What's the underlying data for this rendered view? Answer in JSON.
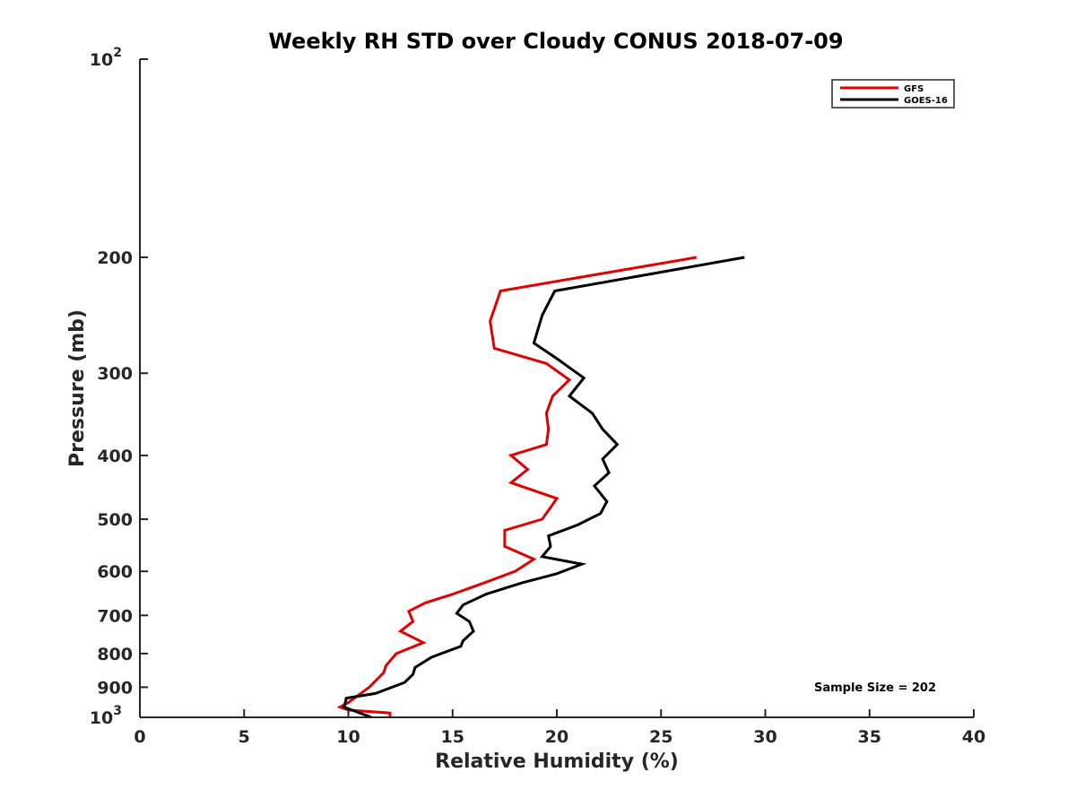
{
  "chart_data": {
    "type": "line",
    "title": "Weekly RH STD over Cloudy CONUS 2018-07-09",
    "xlabel": "Relative Humidity (%)",
    "ylabel": "Pressure (mb)",
    "xlim": [
      0,
      40
    ],
    "ylim": [
      100,
      1000
    ],
    "yscale": "log",
    "y_reversed": true,
    "xticks": [
      0,
      5,
      10,
      15,
      20,
      25,
      30,
      35,
      40
    ],
    "yticks": [
      {
        "value": 100,
        "base": "10",
        "exp": "2"
      },
      {
        "value": 200,
        "label": "200"
      },
      {
        "value": 300,
        "label": "300"
      },
      {
        "value": 400,
        "label": "400"
      },
      {
        "value": 500,
        "label": "500"
      },
      {
        "value": 600,
        "label": "600"
      },
      {
        "value": 700,
        "label": "700"
      },
      {
        "value": 800,
        "label": "800"
      },
      {
        "value": 900,
        "label": "900"
      },
      {
        "value": 1000,
        "base": "10",
        "exp": "3"
      }
    ],
    "legend_position": "top-right",
    "grid": false,
    "annotation": "Sample Size = 202",
    "series": [
      {
        "name": "GFS",
        "color": "#e00000",
        "points": [
          [
            26.7,
            200
          ],
          [
            17.3,
            225
          ],
          [
            16.8,
            250
          ],
          [
            17.0,
            275
          ],
          [
            19.5,
            290
          ],
          [
            20.6,
            307
          ],
          [
            19.8,
            325
          ],
          [
            19.5,
            345
          ],
          [
            19.6,
            365
          ],
          [
            19.5,
            385
          ],
          [
            17.8,
            400
          ],
          [
            18.6,
            420
          ],
          [
            17.8,
            440
          ],
          [
            20.0,
            465
          ],
          [
            19.7,
            480
          ],
          [
            19.3,
            500
          ],
          [
            17.5,
            520
          ],
          [
            17.5,
            550
          ],
          [
            18.9,
            575
          ],
          [
            18.0,
            600
          ],
          [
            16.5,
            625
          ],
          [
            15.0,
            650
          ],
          [
            13.7,
            670
          ],
          [
            12.9,
            690
          ],
          [
            13.1,
            715
          ],
          [
            12.5,
            740
          ],
          [
            13.6,
            770
          ],
          [
            12.3,
            800
          ],
          [
            11.8,
            835
          ],
          [
            11.7,
            855
          ],
          [
            11.0,
            900
          ],
          [
            10.0,
            950
          ],
          [
            9.6,
            965
          ],
          [
            10.0,
            975
          ],
          [
            12.0,
            985
          ],
          [
            12.0,
            1000
          ]
        ]
      },
      {
        "name": "GOES-16",
        "color": "#000000",
        "points": [
          [
            29.0,
            200
          ],
          [
            19.9,
            225
          ],
          [
            19.3,
            245
          ],
          [
            18.9,
            270
          ],
          [
            20.0,
            285
          ],
          [
            21.3,
            305
          ],
          [
            20.6,
            325
          ],
          [
            21.7,
            345
          ],
          [
            22.2,
            365
          ],
          [
            22.9,
            385
          ],
          [
            22.2,
            405
          ],
          [
            22.5,
            425
          ],
          [
            21.8,
            445
          ],
          [
            22.4,
            470
          ],
          [
            22.1,
            490
          ],
          [
            21.0,
            510
          ],
          [
            19.6,
            530
          ],
          [
            19.7,
            550
          ],
          [
            19.3,
            570
          ],
          [
            21.2,
            585
          ],
          [
            20.0,
            605
          ],
          [
            18.3,
            625
          ],
          [
            16.6,
            650
          ],
          [
            15.5,
            675
          ],
          [
            15.2,
            695
          ],
          [
            15.8,
            715
          ],
          [
            16.0,
            740
          ],
          [
            15.5,
            765
          ],
          [
            15.4,
            780
          ],
          [
            14.0,
            810
          ],
          [
            13.2,
            840
          ],
          [
            13.1,
            860
          ],
          [
            12.7,
            885
          ],
          [
            11.3,
            920
          ],
          [
            9.9,
            935
          ],
          [
            9.8,
            965
          ],
          [
            11.1,
            1000
          ]
        ]
      }
    ]
  }
}
